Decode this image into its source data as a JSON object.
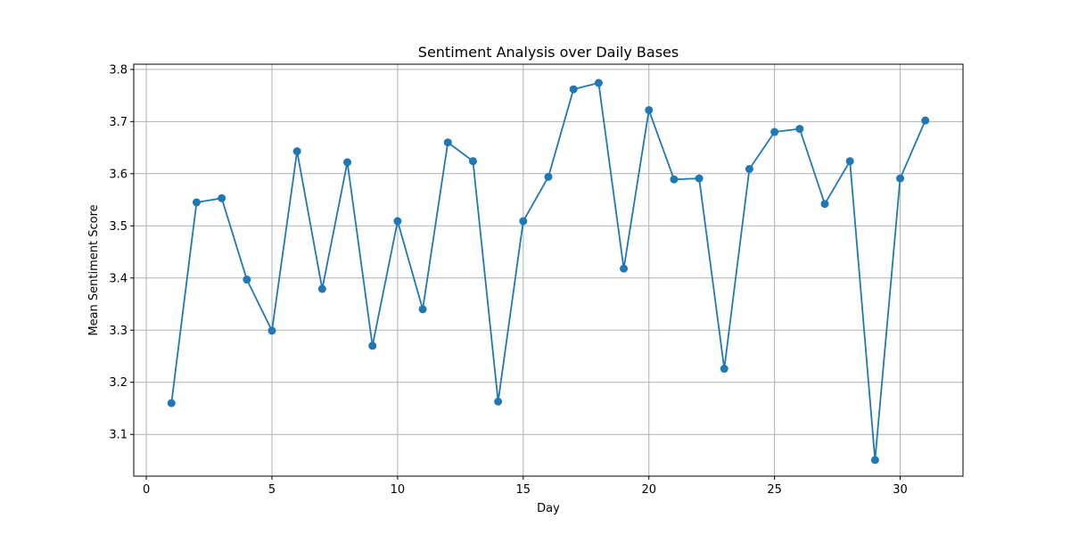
{
  "chart_data": {
    "type": "line",
    "title": "Sentiment Analysis over Daily Bases",
    "xlabel": "Day",
    "ylabel": "Mean Sentiment Score",
    "xlim": [
      -0.5,
      32.5
    ],
    "ylim": [
      3.02,
      3.81
    ],
    "xticks": [
      0,
      5,
      10,
      15,
      20,
      25,
      30
    ],
    "yticks": [
      3.1,
      3.2,
      3.3,
      3.4,
      3.5,
      3.6,
      3.7,
      3.8
    ],
    "grid": true,
    "series": [
      {
        "color": "#1f77b4",
        "marker": "circle",
        "x": [
          1,
          2,
          3,
          4,
          5,
          6,
          7,
          8,
          9,
          10,
          11,
          12,
          13,
          14,
          15,
          16,
          17,
          18,
          19,
          20,
          21,
          22,
          23,
          24,
          25,
          26,
          27,
          28,
          29,
          30,
          31
        ],
        "y": [
          3.16,
          3.545,
          3.553,
          3.397,
          3.299,
          3.643,
          3.379,
          3.622,
          3.27,
          3.509,
          3.34,
          3.66,
          3.624,
          3.163,
          3.509,
          3.594,
          3.762,
          3.774,
          3.418,
          3.722,
          3.589,
          3.591,
          3.226,
          3.609,
          3.68,
          3.686,
          3.542,
          3.624,
          3.051,
          3.591,
          3.702
        ]
      }
    ]
  }
}
